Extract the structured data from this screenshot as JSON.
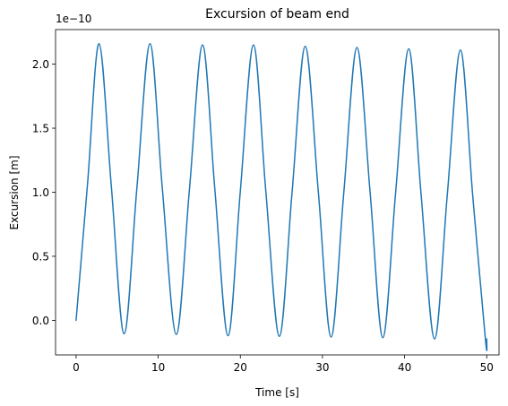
{
  "chart_data": {
    "type": "line",
    "title": "Excursion of beam end",
    "xlabel": "Time [s]",
    "ylabel": "Excursion [m]",
    "y_offset_label": "1e−10",
    "xlim": [
      -2.5,
      51.5
    ],
    "ylim": [
      -2.7e-11,
      2.27e-10
    ],
    "x_ticks": [
      0,
      10,
      20,
      30,
      40,
      50
    ],
    "x_tick_labels": [
      "0",
      "10",
      "20",
      "30",
      "40",
      "50"
    ],
    "y_ticks": [
      0,
      5e-11,
      1e-10,
      1.5e-10,
      2e-10
    ],
    "y_tick_labels": [
      "0.0",
      "0.5",
      "1.0",
      "1.5",
      "2.0"
    ],
    "grid": false,
    "legend": "none",
    "series": [
      {
        "color": "#1f77b4",
        "x": [
          0,
          1.4,
          2.8,
          4.3,
          5.85,
          7.4,
          9.0,
          10.5,
          12.2,
          13.8,
          15.4,
          16.9,
          18.5,
          20.0,
          21.6,
          23.1,
          24.75,
          26.3,
          27.9,
          29.5,
          31.05,
          32.6,
          34.2,
          35.8,
          37.35,
          38.9,
          40.5,
          42.0,
          43.65,
          45.2,
          46.8,
          48.3,
          49.85,
          50.0
        ],
        "y": [
          0,
          1.07e-10,
          2.16e-10,
          1.04e-10,
          -1.05e-11,
          1.03e-10,
          2.16e-10,
          1.03e-10,
          -1.1e-11,
          1.02e-10,
          2.15e-10,
          1.02e-10,
          -1.2e-11,
          1.01e-10,
          2.15e-10,
          1.01e-10,
          -1.25e-11,
          1e-10,
          2.14e-10,
          1e-10,
          -1.3e-11,
          1e-10,
          2.13e-10,
          1e-10,
          -1.35e-11,
          9.9e-11,
          2.12e-10,
          9.9e-11,
          -1.45e-11,
          9.8e-11,
          2.11e-10,
          9.7e-11,
          -1.55e-11,
          -1.45e-11
        ]
      }
    ]
  }
}
